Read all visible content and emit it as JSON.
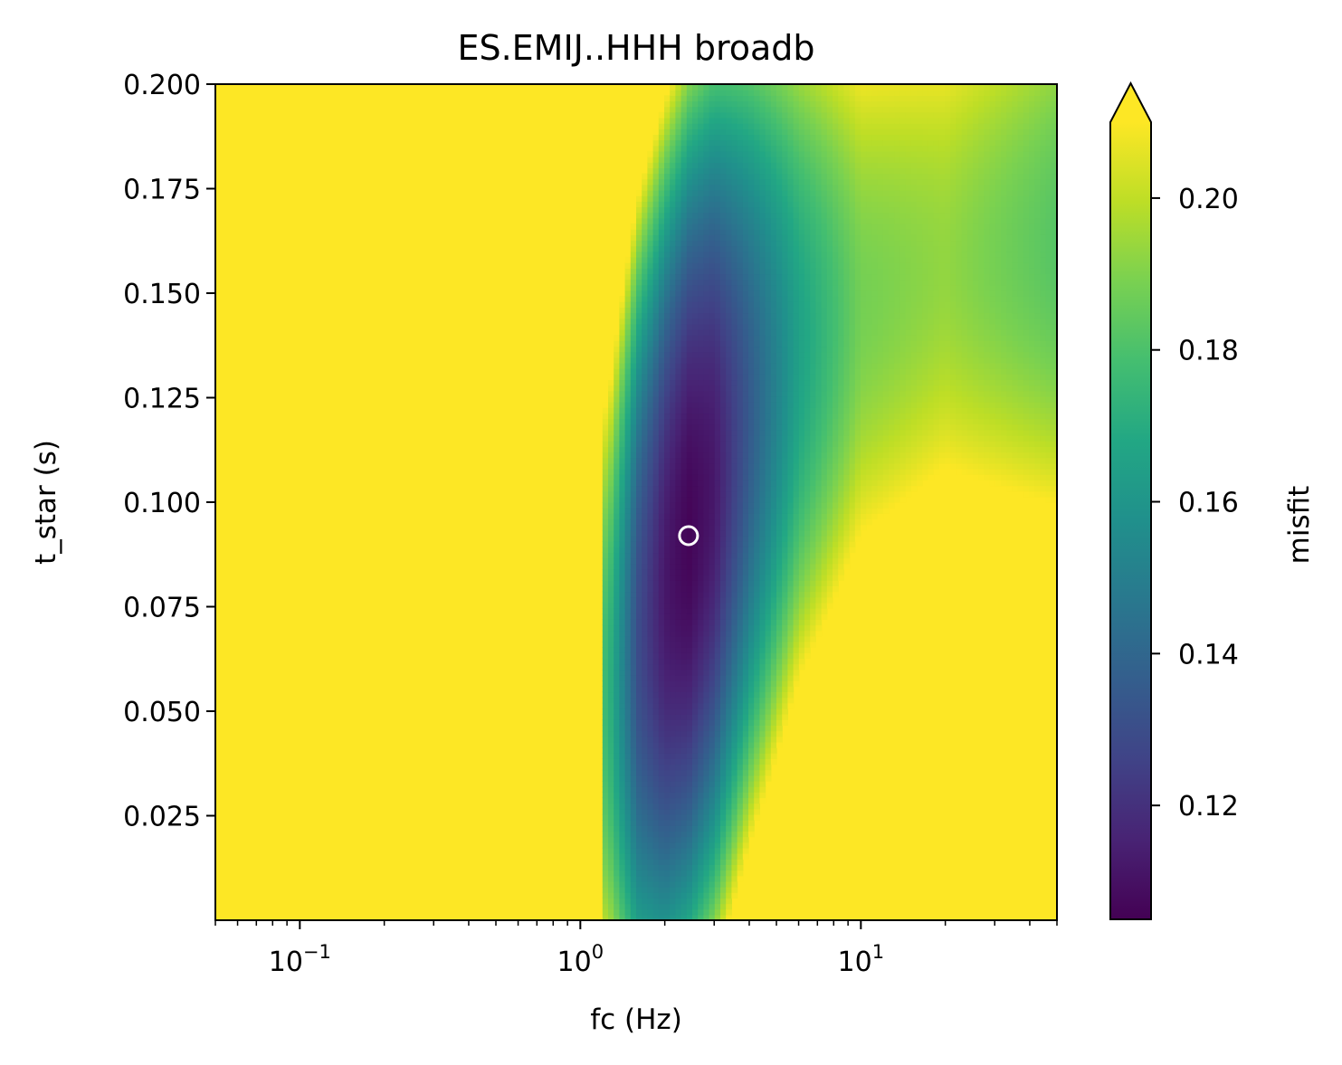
{
  "chart_data": {
    "type": "heatmap",
    "title": "ES.EMIJ..HHH broadb",
    "xlabel": "fc (Hz)",
    "ylabel": "t_star (s)",
    "xscale": "log",
    "xlim": [
      0.05,
      50
    ],
    "ylim": [
      0.0,
      0.2
    ],
    "x_ticks": [
      {
        "value": 0.1,
        "base": "10",
        "exp": "−1"
      },
      {
        "value": 1,
        "base": "10",
        "exp": "0"
      },
      {
        "value": 10,
        "base": "10",
        "exp": "1"
      }
    ],
    "y_ticks": [
      {
        "value": 0.025,
        "label": "0.025"
      },
      {
        "value": 0.05,
        "label": "0.050"
      },
      {
        "value": 0.075,
        "label": "0.075"
      },
      {
        "value": 0.1,
        "label": "0.100"
      },
      {
        "value": 0.125,
        "label": "0.125"
      },
      {
        "value": 0.15,
        "label": "0.150"
      },
      {
        "value": 0.175,
        "label": "0.175"
      },
      {
        "value": 0.2,
        "label": "0.200"
      }
    ],
    "colorbar": {
      "label": "misfit",
      "min": 0.105,
      "max": 0.21,
      "extend": "max",
      "colormap": "viridis",
      "ticks": [
        {
          "value": 0.12,
          "label": "0.12"
        },
        {
          "value": 0.14,
          "label": "0.14"
        },
        {
          "value": 0.16,
          "label": "0.16"
        },
        {
          "value": 0.18,
          "label": "0.18"
        },
        {
          "value": 0.2,
          "label": "0.20"
        }
      ]
    },
    "misfit_valley": {
      "centerline": [
        {
          "fc": 1.25,
          "t_star": 0.055
        },
        {
          "fc": 1.6,
          "t_star": 0.068
        },
        {
          "fc": 2.0,
          "t_star": 0.08
        },
        {
          "fc": 2.43,
          "t_star": 0.092
        },
        {
          "fc": 3.0,
          "t_star": 0.104
        },
        {
          "fc": 4.0,
          "t_star": 0.12
        },
        {
          "fc": 6.0,
          "t_star": 0.137
        },
        {
          "fc": 10.0,
          "t_star": 0.148
        },
        {
          "fc": 20.0,
          "t_star": 0.157
        },
        {
          "fc": 50.0,
          "t_star": 0.162
        }
      ],
      "min_misfit": [
        {
          "fc": 1.25,
          "misfit": 0.176
        },
        {
          "fc": 1.6,
          "misfit": 0.13
        },
        {
          "fc": 2.0,
          "misfit": 0.112
        },
        {
          "fc": 2.43,
          "misfit": 0.106
        },
        {
          "fc": 3.0,
          "misfit": 0.112
        },
        {
          "fc": 4.0,
          "misfit": 0.135
        },
        {
          "fc": 6.0,
          "misfit": 0.165
        },
        {
          "fc": 10.0,
          "misfit": 0.188
        },
        {
          "fc": 20.0,
          "misfit": 0.193
        },
        {
          "fc": 50.0,
          "misfit": 0.182
        }
      ]
    },
    "best_fit": {
      "fc": 2.43,
      "t_star": 0.092
    },
    "colors": {
      "background_fill": "#fde725",
      "marker_edge": "#ffffff"
    }
  }
}
